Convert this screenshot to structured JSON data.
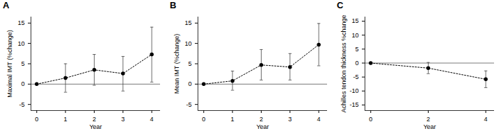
{
  "chart_data": [
    {
      "type": "line",
      "title": "A",
      "x_label": "Year",
      "y_label": "Maximal IMT (%change)",
      "x": [
        0,
        1,
        2,
        3,
        4
      ],
      "values": [
        0,
        1.5,
        3.5,
        2.6,
        7.3
      ],
      "error_low": [
        null,
        -2,
        -0.3,
        -1.7,
        0.5
      ],
      "error_high": [
        null,
        5,
        7.3,
        6.8,
        14
      ],
      "xlim": [
        -0.2,
        4.3
      ],
      "xticks": [
        0,
        1,
        2,
        3,
        4
      ],
      "ylim": [
        -6.5,
        16.5
      ],
      "yticks": [
        -5,
        0,
        5,
        10,
        15
      ],
      "reference_line": 0,
      "color": "#000000",
      "marker": "circle",
      "line_style": "dotted"
    },
    {
      "type": "line",
      "title": "B",
      "x_label": "Year",
      "y_label": "Mean IMT (%change)",
      "x": [
        0,
        1,
        2,
        3,
        4
      ],
      "values": [
        0,
        0.8,
        4.7,
        4.2,
        9.7
      ],
      "error_low": [
        null,
        -1.5,
        1,
        1,
        4.5
      ],
      "error_high": [
        null,
        3.2,
        8.5,
        7.5,
        14.9
      ],
      "xlim": [
        -0.2,
        4.3
      ],
      "xticks": [
        0,
        1,
        2,
        3,
        4
      ],
      "ylim": [
        -6.5,
        16.5
      ],
      "yticks": [
        -5,
        0,
        5,
        10,
        15
      ],
      "reference_line": 0,
      "color": "#000000",
      "marker": "circle",
      "line_style": "dotted"
    },
    {
      "type": "line",
      "title": "C",
      "x_label": "Year",
      "y_label": "Achilles tendon thickness %change",
      "x": [
        0,
        2,
        4
      ],
      "values": [
        0,
        -1.8,
        -5.8
      ],
      "error_low": [
        null,
        -3.8,
        -8.8
      ],
      "error_high": [
        null,
        0.2,
        -2.8
      ],
      "xlim": [
        -0.2,
        4.3
      ],
      "xticks": [
        0,
        2,
        4
      ],
      "ylim": [
        -17,
        16.5
      ],
      "yticks": [
        -15,
        -10,
        -5,
        0,
        5,
        10,
        15
      ],
      "reference_line": 0,
      "color": "#000000",
      "marker": "circle",
      "line_style": "dotted"
    }
  ]
}
